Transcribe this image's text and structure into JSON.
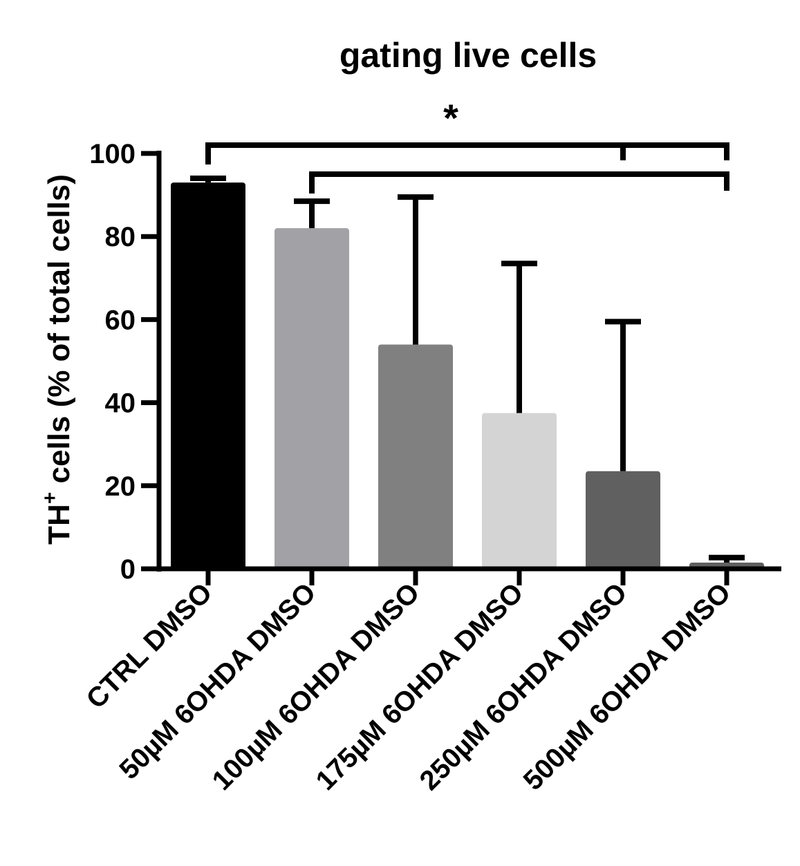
{
  "chart_data": {
    "type": "bar",
    "title": "gating live cells",
    "ylabel": {
      "main": "TH",
      "superscript": "+",
      "rest": " cells (% of total cells)"
    },
    "xlabel": "",
    "ylim": [
      0,
      100
    ],
    "yticks": [
      "0",
      "20",
      "40",
      "60",
      "80",
      "100"
    ],
    "categories": [
      "CTRL DMSO",
      "50µM 6OHDA DMSO",
      "100µM 6OHDA DMSO",
      "175µM 6OHDA DMSO",
      "250µM 6OHDA DMSO",
      "500µM 6OHDA DMSO"
    ],
    "values": [
      93,
      82,
      54,
      37.5,
      23.5,
      1.5
    ],
    "error_upper": [
      94,
      88.5,
      89.5,
      73.5,
      59.5,
      2.7
    ],
    "colors": [
      "#000000",
      "#a2a2a6",
      "#808080",
      "#d4d4d4",
      "#606060",
      "#606060"
    ],
    "grid": false,
    "legend": "none",
    "significance": [
      {
        "label": "*",
        "from_category": 0,
        "to_categories": [
          4,
          5
        ]
      },
      {
        "label": "",
        "from_category": 1,
        "to_categories": [
          5
        ]
      }
    ]
  }
}
